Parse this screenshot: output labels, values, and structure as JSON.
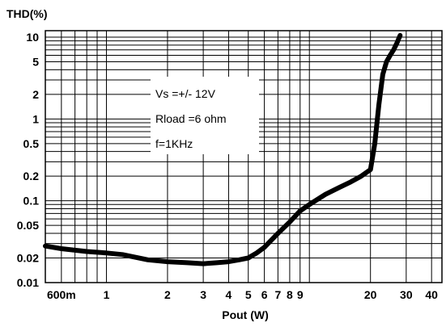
{
  "chart_data": {
    "type": "line",
    "title": "",
    "ylabel": "THD(%)",
    "xlabel": "Pout (W)",
    "x_scale": "log",
    "y_scale": "log",
    "xlim": [
      0.5,
      45
    ],
    "ylim": [
      0.01,
      12
    ],
    "grid": true,
    "legend": "none",
    "x_ticks": [
      {
        "value": 0.6,
        "label": "600m"
      },
      {
        "value": 1,
        "label": "1"
      },
      {
        "value": 2,
        "label": "2"
      },
      {
        "value": 3,
        "label": "3"
      },
      {
        "value": 4,
        "label": "4"
      },
      {
        "value": 5,
        "label": "5"
      },
      {
        "value": 6,
        "label": "6"
      },
      {
        "value": 7,
        "label": "7"
      },
      {
        "value": 8,
        "label": "8"
      },
      {
        "value": 9,
        "label": "9"
      },
      {
        "value": 20,
        "label": "20"
      },
      {
        "value": 30,
        "label": "30"
      },
      {
        "value": 40,
        "label": "40"
      }
    ],
    "y_ticks": [
      {
        "value": 10,
        "label": "10"
      },
      {
        "value": 5,
        "label": "5"
      },
      {
        "value": 2,
        "label": "2"
      },
      {
        "value": 1,
        "label": "1"
      },
      {
        "value": 0.5,
        "label": "0.5"
      },
      {
        "value": 0.2,
        "label": "0.2"
      },
      {
        "value": 0.1,
        "label": "0.1"
      },
      {
        "value": 0.05,
        "label": "0.05"
      },
      {
        "value": 0.02,
        "label": "0.02"
      },
      {
        "value": 0.01,
        "label": "0.01"
      }
    ],
    "annotations": [
      "Vs =+/- 12V",
      "Rload =6 ohm",
      "f=1KHz"
    ],
    "series": [
      {
        "x": [
          0.5,
          0.6,
          0.8,
          1.0,
          1.2,
          1.6,
          2.0,
          2.5,
          3.0,
          3.5,
          4.0,
          4.5,
          5.0,
          5.5,
          6.0,
          7.0,
          8.0,
          9.0,
          10.0,
          12.0,
          14.0,
          16.0,
          18.0,
          20.0,
          21.0,
          22.0,
          23.0,
          24.0,
          25.0,
          26.0,
          27.0,
          28.0
        ],
        "y": [
          0.028,
          0.026,
          0.024,
          0.023,
          0.022,
          0.019,
          0.018,
          0.0175,
          0.017,
          0.0175,
          0.018,
          0.019,
          0.02,
          0.023,
          0.027,
          0.04,
          0.055,
          0.075,
          0.09,
          0.12,
          0.145,
          0.17,
          0.2,
          0.24,
          0.5,
          1.5,
          3.5,
          5.0,
          6.0,
          7.0,
          8.5,
          10.5
        ]
      }
    ]
  }
}
